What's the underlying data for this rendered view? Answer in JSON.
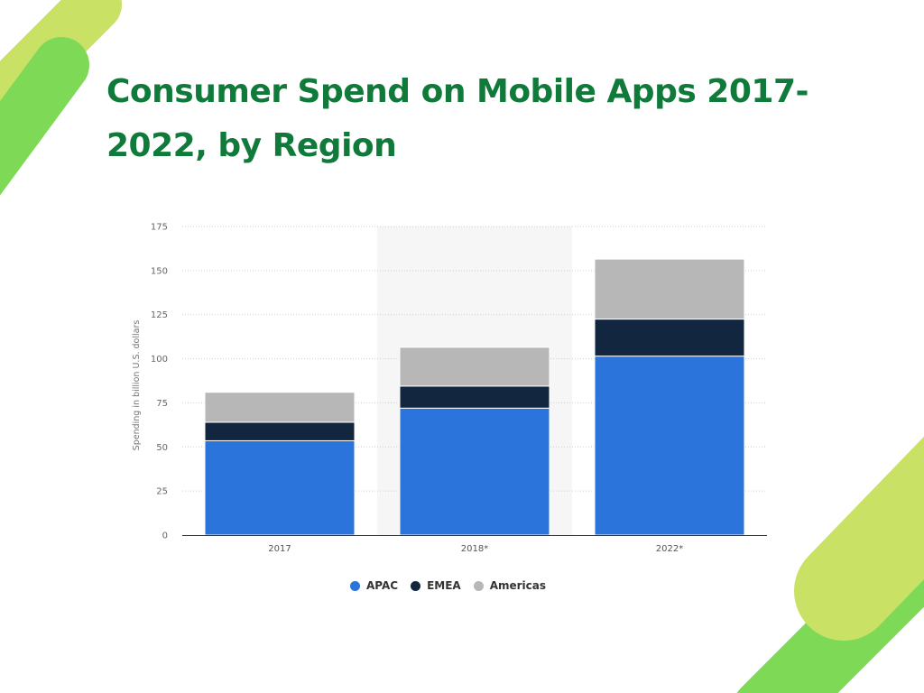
{
  "title": "Consumer Spend on Mobile Apps 2017-2022, by Region",
  "colors": {
    "title": "#0f7a3a",
    "deco_light": "#c9e265",
    "deco_dark": "#7ed957"
  },
  "chart_data": {
    "type": "bar",
    "stacked": true,
    "categories": [
      "2017",
      "2018*",
      "2022*"
    ],
    "series": [
      {
        "name": "APAC",
        "values": [
          53.5,
          72,
          101.5
        ],
        "color": "#2a74db"
      },
      {
        "name": "EMEA",
        "values": [
          10.5,
          12.5,
          21
        ],
        "color": "#12263f"
      },
      {
        "name": "Americas",
        "values": [
          17,
          22,
          34
        ],
        "color": "#b7b7b7"
      }
    ],
    "ylabel": "Spending in billion U.S. dollars",
    "xlabel": "",
    "ylim": [
      0,
      175
    ],
    "yticks": [
      0,
      25,
      50,
      75,
      100,
      125,
      150,
      175
    ],
    "grid": true,
    "highlighted_category": "2018*",
    "legend_position": "bottom-center"
  }
}
